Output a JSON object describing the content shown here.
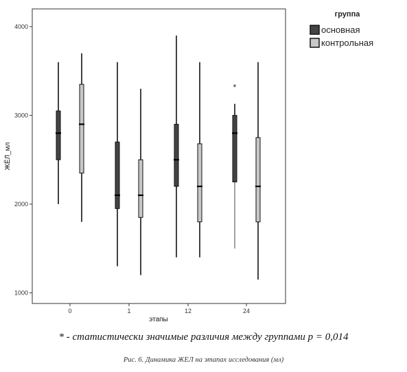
{
  "chart_data": {
    "type": "boxplot",
    "xlabel": "этапы",
    "ylabel": "ЖЁЛ_мл",
    "ylim": [
      880,
      4200
    ],
    "yticks": [
      1000,
      2000,
      3000,
      4000
    ],
    "categories": [
      "0",
      "1",
      "12",
      "24"
    ],
    "legend": {
      "title": "группа",
      "placement": "top-right"
    },
    "series": [
      {
        "name": "основная",
        "color": "#444444",
        "boxes": [
          {
            "min": 2000,
            "q1": 2500,
            "median": 2800,
            "q3": 3050,
            "max": 3600
          },
          {
            "min": 1300,
            "q1": 1950,
            "median": 2100,
            "q3": 2700,
            "max": 3600
          },
          {
            "min": 1400,
            "q1": 2200,
            "median": 2500,
            "q3": 2900,
            "max": 3900
          },
          {
            "min": 1500,
            "q1": 2250,
            "median": 2800,
            "q3": 3000,
            "max": 3130,
            "outliers": [
              3330
            ]
          }
        ]
      },
      {
        "name": "контрольная",
        "color": "#c8c8c8",
        "boxes": [
          {
            "min": 1800,
            "q1": 2350,
            "median": 2900,
            "q3": 3350,
            "max": 3700
          },
          {
            "min": 1200,
            "q1": 1850,
            "median": 2100,
            "q3": 2500,
            "max": 3300
          },
          {
            "min": 1400,
            "q1": 1800,
            "median": 2200,
            "q3": 2680,
            "max": 3600
          },
          {
            "min": 1150,
            "q1": 1800,
            "median": 2200,
            "q3": 2750,
            "max": 3600
          }
        ]
      }
    ]
  },
  "note": "* - статистически значимые различия между группами p = 0,014",
  "caption": "Рис. 6. Динамика ЖЕЛ на этапах исследования (мл)"
}
